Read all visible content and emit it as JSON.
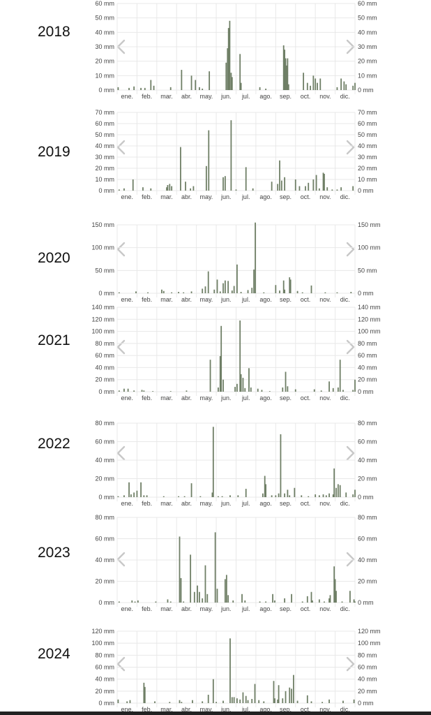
{
  "months": [
    "ene.",
    "feb.",
    "mar.",
    "abr.",
    "may.",
    "jun.",
    "jul.",
    "ago.",
    "sep.",
    "oct.",
    "nov.",
    "dic."
  ],
  "unit": "mm",
  "colors": {
    "bar": "#6f7f66",
    "grid": "#e8e8e8",
    "axis_text": "#444444",
    "chevron": "#c8c8c8"
  },
  "nav_icons": {
    "prev": "chevron-left-icon",
    "next": "chevron-right-icon"
  },
  "chart_data": [
    {
      "type": "bar",
      "year": "2018",
      "ylim": [
        0,
        60
      ],
      "yticks": [
        "0 mm",
        "10 mm",
        "20 mm",
        "30 mm",
        "40 mm",
        "50 mm",
        "60 mm"
      ],
      "values": [
        [
          0.05,
          2
        ],
        [
          0.6,
          1.5
        ],
        [
          0.85,
          2.5
        ],
        [
          1.2,
          1.5
        ],
        [
          1.4,
          1.5
        ],
        [
          1.7,
          7
        ],
        [
          1.85,
          3
        ],
        [
          2.7,
          2
        ],
        [
          3.25,
          14
        ],
        [
          3.75,
          10
        ],
        [
          3.95,
          7
        ],
        [
          4.15,
          2
        ],
        [
          4.3,
          1
        ],
        [
          4.65,
          13
        ],
        [
          5.5,
          19
        ],
        [
          5.57,
          29
        ],
        [
          5.62,
          43
        ],
        [
          5.68,
          48
        ],
        [
          5.75,
          12
        ],
        [
          5.8,
          9
        ],
        [
          6.2,
          25
        ],
        [
          6.25,
          5
        ],
        [
          7.2,
          2
        ],
        [
          7.5,
          1
        ],
        [
          8.4,
          31
        ],
        [
          8.45,
          28
        ],
        [
          8.5,
          22
        ],
        [
          8.55,
          17
        ],
        [
          8.6,
          22
        ],
        [
          8.65,
          4
        ],
        [
          9.4,
          12
        ],
        [
          9.6,
          5
        ],
        [
          9.75,
          3
        ],
        [
          9.9,
          10
        ],
        [
          10.0,
          8
        ],
        [
          10.1,
          5
        ],
        [
          10.25,
          8
        ],
        [
          11.1,
          2
        ],
        [
          11.3,
          8
        ],
        [
          11.45,
          6
        ],
        [
          11.55,
          4
        ],
        [
          11.9,
          3
        ],
        [
          12.0,
          5
        ]
      ]
    },
    {
      "type": "bar",
      "year": "2019",
      "ylim": [
        0,
        70
      ],
      "yticks": [
        "0 mm",
        "10 mm",
        "20 mm",
        "30 mm",
        "40 mm",
        "50 mm",
        "60 mm",
        "70 mm"
      ],
      "values": [
        [
          0.1,
          1
        ],
        [
          0.35,
          2
        ],
        [
          0.8,
          10
        ],
        [
          1.3,
          3
        ],
        [
          1.7,
          2
        ],
        [
          2.5,
          3
        ],
        [
          2.55,
          5
        ],
        [
          2.65,
          6
        ],
        [
          2.75,
          4
        ],
        [
          3.2,
          39
        ],
        [
          3.45,
          8
        ],
        [
          3.7,
          2
        ],
        [
          3.85,
          4
        ],
        [
          4.5,
          22
        ],
        [
          4.62,
          54
        ],
        [
          5.35,
          12
        ],
        [
          5.45,
          13
        ],
        [
          5.75,
          63
        ],
        [
          6.0,
          1
        ],
        [
          6.5,
          21
        ],
        [
          6.85,
          2
        ],
        [
          7.8,
          8
        ],
        [
          8.1,
          6
        ],
        [
          8.2,
          27
        ],
        [
          8.3,
          9
        ],
        [
          8.45,
          12
        ],
        [
          9.0,
          10
        ],
        [
          9.2,
          4
        ],
        [
          9.5,
          4
        ],
        [
          9.65,
          7
        ],
        [
          9.9,
          10
        ],
        [
          10.05,
          14
        ],
        [
          10.2,
          2
        ],
        [
          10.4,
          16
        ],
        [
          10.45,
          15
        ],
        [
          10.6,
          3
        ],
        [
          10.85,
          1
        ],
        [
          11.1,
          1
        ],
        [
          11.3,
          3
        ],
        [
          11.9,
          4
        ]
      ]
    },
    {
      "type": "bar",
      "year": "2020",
      "ylim": [
        0,
        150
      ],
      "yticks": [
        "0 mm",
        "50 mm",
        "100 mm",
        "150 mm"
      ],
      "values": [
        [
          0.1,
          2
        ],
        [
          0.95,
          4
        ],
        [
          1.55,
          2
        ],
        [
          2.25,
          8
        ],
        [
          2.35,
          5
        ],
        [
          2.75,
          2
        ],
        [
          3.1,
          3
        ],
        [
          3.35,
          2
        ],
        [
          3.75,
          4
        ],
        [
          4.3,
          10
        ],
        [
          4.45,
          15
        ],
        [
          4.6,
          48
        ],
        [
          4.9,
          8
        ],
        [
          5.05,
          30
        ],
        [
          5.2,
          4
        ],
        [
          5.35,
          22
        ],
        [
          5.45,
          28
        ],
        [
          5.6,
          27
        ],
        [
          5.8,
          6
        ],
        [
          5.9,
          16
        ],
        [
          6.05,
          63
        ],
        [
          6.25,
          3
        ],
        [
          6.6,
          7
        ],
        [
          6.8,
          12
        ],
        [
          6.9,
          52
        ],
        [
          6.97,
          155
        ],
        [
          7.4,
          2
        ],
        [
          8.0,
          18
        ],
        [
          8.2,
          6
        ],
        [
          8.4,
          28
        ],
        [
          8.45,
          8
        ],
        [
          8.7,
          35
        ],
        [
          8.75,
          30
        ],
        [
          9.1,
          5
        ],
        [
          9.35,
          2
        ],
        [
          9.8,
          17
        ],
        [
          10.5,
          2
        ],
        [
          11.1,
          2
        ],
        [
          11.8,
          3
        ]
      ]
    },
    {
      "type": "bar",
      "year": "2021",
      "ylim": [
        0,
        140
      ],
      "yticks": [
        "0 mm",
        "20 mm",
        "40 mm",
        "60 mm",
        "80 mm",
        "100 mm",
        "120 mm",
        "140 mm"
      ],
      "values": [
        [
          0.1,
          2
        ],
        [
          0.35,
          5
        ],
        [
          0.55,
          5
        ],
        [
          0.85,
          2
        ],
        [
          1.25,
          3
        ],
        [
          1.35,
          2
        ],
        [
          1.8,
          1
        ],
        [
          2.7,
          1
        ],
        [
          3.5,
          2
        ],
        [
          4.7,
          53
        ],
        [
          5.1,
          7
        ],
        [
          5.2,
          59
        ],
        [
          5.25,
          109
        ],
        [
          5.35,
          20
        ],
        [
          5.95,
          8
        ],
        [
          6.05,
          13
        ],
        [
          6.2,
          118
        ],
        [
          6.25,
          29
        ],
        [
          6.35,
          23
        ],
        [
          6.45,
          6
        ],
        [
          6.65,
          39
        ],
        [
          6.75,
          7
        ],
        [
          7.1,
          5
        ],
        [
          7.3,
          3
        ],
        [
          7.7,
          1
        ],
        [
          8.35,
          7
        ],
        [
          8.5,
          33
        ],
        [
          8.6,
          9
        ],
        [
          9.0,
          4
        ],
        [
          9.95,
          4
        ],
        [
          10.3,
          2
        ],
        [
          10.7,
          17
        ],
        [
          10.9,
          6
        ],
        [
          11.15,
          7
        ],
        [
          11.25,
          53
        ],
        [
          11.4,
          3
        ],
        [
          11.9,
          3
        ],
        [
          12.0,
          20
        ]
      ]
    },
    {
      "type": "bar",
      "year": "2022",
      "ylim": [
        0,
        80
      ],
      "yticks": [
        "0 mm",
        "20 mm",
        "40 mm",
        "60 mm",
        "80 mm"
      ],
      "values": [
        [
          0.05,
          1
        ],
        [
          0.35,
          2
        ],
        [
          0.6,
          16
        ],
        [
          0.7,
          3
        ],
        [
          0.85,
          5
        ],
        [
          1.0,
          7
        ],
        [
          1.2,
          16
        ],
        [
          1.35,
          2
        ],
        [
          1.5,
          2
        ],
        [
          2.35,
          1
        ],
        [
          3.1,
          1
        ],
        [
          3.4,
          1
        ],
        [
          3.75,
          15
        ],
        [
          4.2,
          1
        ],
        [
          4.8,
          5
        ],
        [
          4.85,
          76
        ],
        [
          5.1,
          1
        ],
        [
          5.3,
          1
        ],
        [
          5.7,
          2
        ],
        [
          6.1,
          2
        ],
        [
          6.5,
          9
        ],
        [
          7.35,
          4
        ],
        [
          7.45,
          23
        ],
        [
          7.5,
          14
        ],
        [
          7.8,
          2
        ],
        [
          8.0,
          2
        ],
        [
          8.15,
          4
        ],
        [
          8.25,
          68
        ],
        [
          8.45,
          4
        ],
        [
          8.6,
          8
        ],
        [
          8.7,
          2
        ],
        [
          8.95,
          10
        ],
        [
          9.3,
          2
        ],
        [
          9.65,
          1
        ],
        [
          10.0,
          3
        ],
        [
          10.2,
          2
        ],
        [
          10.4,
          3
        ],
        [
          10.55,
          2
        ],
        [
          10.7,
          4
        ],
        [
          10.9,
          3
        ],
        [
          10.95,
          31
        ],
        [
          11.05,
          10
        ],
        [
          11.15,
          14
        ],
        [
          11.25,
          13
        ],
        [
          11.55,
          5
        ],
        [
          11.9,
          3
        ],
        [
          12.0,
          8
        ]
      ]
    },
    {
      "type": "bar",
      "year": "2023",
      "ylim": [
        0,
        80
      ],
      "yticks": [
        "0 mm",
        "20 mm",
        "40 mm",
        "60 mm",
        "80 mm"
      ],
      "values": [
        [
          0.1,
          1
        ],
        [
          0.75,
          2
        ],
        [
          0.9,
          1
        ],
        [
          1.05,
          2
        ],
        [
          1.95,
          1
        ],
        [
          2.55,
          3
        ],
        [
          2.7,
          1
        ],
        [
          3.15,
          62
        ],
        [
          3.22,
          23
        ],
        [
          3.35,
          1
        ],
        [
          3.7,
          45
        ],
        [
          3.9,
          10
        ],
        [
          4.05,
          16
        ],
        [
          4.15,
          10
        ],
        [
          4.3,
          4
        ],
        [
          4.45,
          35
        ],
        [
          4.55,
          8
        ],
        [
          4.95,
          66
        ],
        [
          5.05,
          13
        ],
        [
          5.45,
          22
        ],
        [
          5.52,
          26
        ],
        [
          5.6,
          7
        ],
        [
          5.85,
          2
        ],
        [
          6.3,
          8
        ],
        [
          6.45,
          2
        ],
        [
          7.2,
          1
        ],
        [
          7.5,
          1
        ],
        [
          7.85,
          8
        ],
        [
          7.95,
          2
        ],
        [
          8.45,
          4
        ],
        [
          8.8,
          8
        ],
        [
          9.35,
          1
        ],
        [
          9.6,
          6
        ],
        [
          9.8,
          10
        ],
        [
          9.85,
          2
        ],
        [
          10.2,
          3
        ],
        [
          10.45,
          1
        ],
        [
          10.7,
          4
        ],
        [
          10.75,
          7
        ],
        [
          10.95,
          34
        ],
        [
          11.0,
          22
        ],
        [
          11.05,
          11
        ],
        [
          11.35,
          1
        ],
        [
          11.75,
          11
        ],
        [
          11.95,
          3
        ],
        [
          12.0,
          1
        ]
      ]
    },
    {
      "type": "bar",
      "year": "2024",
      "ylim": [
        0,
        120
      ],
      "yticks": [
        "0 mm",
        "20 mm",
        "40 mm",
        "60 mm",
        "80 mm",
        "100 mm",
        "120 mm"
      ],
      "values": [
        [
          0.05,
          6
        ],
        [
          0.5,
          3
        ],
        [
          0.65,
          5
        ],
        [
          1.35,
          34
        ],
        [
          1.4,
          27
        ],
        [
          1.9,
          3
        ],
        [
          2.65,
          2
        ],
        [
          3.15,
          5
        ],
        [
          3.25,
          2
        ],
        [
          3.8,
          5
        ],
        [
          4.3,
          3
        ],
        [
          4.6,
          14
        ],
        [
          4.85,
          40
        ],
        [
          5.0,
          2
        ],
        [
          5.35,
          4
        ],
        [
          5.7,
          108
        ],
        [
          5.8,
          10
        ],
        [
          5.9,
          10
        ],
        [
          6.05,
          8
        ],
        [
          6.2,
          6
        ],
        [
          6.35,
          18
        ],
        [
          6.5,
          12
        ],
        [
          6.6,
          5
        ],
        [
          6.8,
          7
        ],
        [
          6.95,
          32
        ],
        [
          7.15,
          5
        ],
        [
          7.4,
          3
        ],
        [
          7.9,
          37
        ],
        [
          7.95,
          8
        ],
        [
          8.1,
          6
        ],
        [
          8.15,
          30
        ],
        [
          8.35,
          8
        ],
        [
          8.5,
          20
        ],
        [
          8.7,
          26
        ],
        [
          8.8,
          24
        ],
        [
          8.9,
          47
        ],
        [
          9.1,
          4
        ],
        [
          9.6,
          13
        ],
        [
          9.8,
          3
        ],
        [
          10.35,
          2
        ],
        [
          10.7,
          6
        ],
        [
          11.4,
          4
        ],
        [
          11.95,
          6
        ]
      ]
    }
  ]
}
